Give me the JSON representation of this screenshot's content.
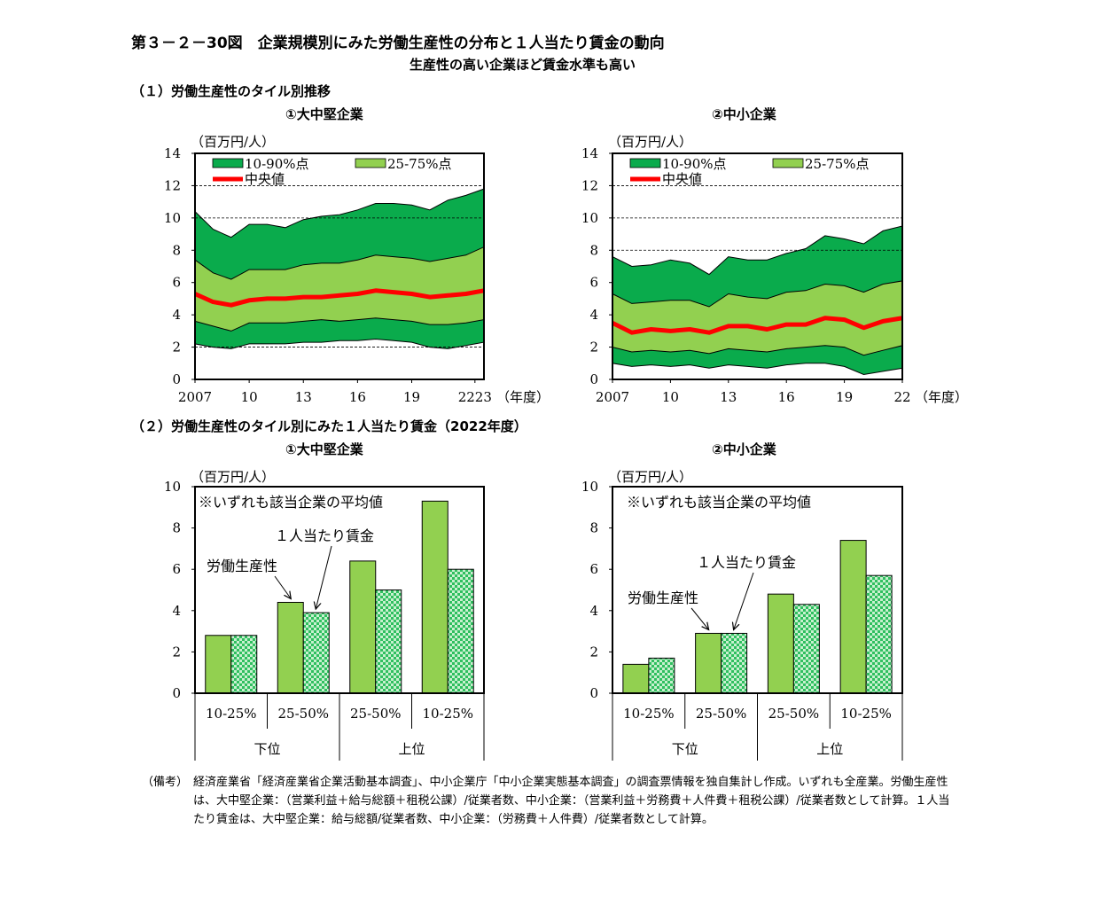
{
  "header": {
    "title": "第３－２－30図　企業規模別にみた労働生産性の分布と１人当たり賃金の動向",
    "subtitle": "生産性の高い企業ほど賃金水準も高い"
  },
  "sections": {
    "s1": "（１）労働生産性のタイル別推移",
    "s2": "（２）労働生産性のタイル別にみた１人当たり賃金（2022年度）"
  },
  "panel_titles": {
    "large": "①大中堅企業",
    "small": "②中小企業"
  },
  "notes": {
    "label": "（備考）",
    "lines": [
      "経済産業省「経済産業省企業活動基本調査」、中小企業庁「中小企業実態基本調査」の調査票情報を独自集計し作成。いずれも全産業。労働生産性は、大中堅企業：（営業利益＋給与総額＋租税公課）/従業者数、中小企業：（営業利益＋労務費＋人件費＋租税公課）/従業者数として計算。１人当たり賃金は、大中堅企業：給与総額/従業者数、中小企業：（労務費＋人件費）/従業者数として計算。"
    ]
  },
  "colors": {
    "band_10_90": "#0aab4c",
    "band_25_75": "#92d050",
    "median": "#ff0000",
    "bar_productivity": "#92d050",
    "bar_wage": "#2fbf5f"
  },
  "chart_data": [
    {
      "id": "line_large",
      "type": "area",
      "title": "①大中堅企業",
      "ylabel": "（百万円/人）",
      "xlabel": "（年度）",
      "ylim": [
        0,
        14
      ],
      "yticks": [
        0,
        2,
        4,
        6,
        8,
        10,
        12,
        14
      ],
      "grid": [
        2,
        10,
        12
      ],
      "x": [
        2007,
        2008,
        2009,
        2010,
        2011,
        2012,
        2013,
        2014,
        2015,
        2016,
        2017,
        2018,
        2019,
        2020,
        2021,
        2022,
        2023
      ],
      "xtick_labels": [
        {
          "x": 2007,
          "label": "2007"
        },
        {
          "x": 2010,
          "label": "10"
        },
        {
          "x": 2013,
          "label": "13"
        },
        {
          "x": 2016,
          "label": "16"
        },
        {
          "x": 2019,
          "label": "19"
        },
        {
          "x": 2022.5,
          "label": "2223"
        }
      ],
      "legend": [
        "10-90%点",
        "25-75%点",
        "中央値"
      ],
      "legend_position": "top-left",
      "series": {
        "p10": [
          2.2,
          2.0,
          1.9,
          2.2,
          2.2,
          2.2,
          2.3,
          2.3,
          2.4,
          2.4,
          2.5,
          2.4,
          2.3,
          2.0,
          1.9,
          2.1,
          2.3
        ],
        "p25": [
          3.6,
          3.3,
          3.0,
          3.5,
          3.5,
          3.5,
          3.6,
          3.7,
          3.6,
          3.7,
          3.8,
          3.7,
          3.6,
          3.4,
          3.4,
          3.5,
          3.7
        ],
        "median": [
          5.3,
          4.8,
          4.6,
          4.9,
          5.0,
          5.0,
          5.1,
          5.1,
          5.2,
          5.3,
          5.5,
          5.4,
          5.3,
          5.1,
          5.2,
          5.3,
          5.5
        ],
        "p75": [
          7.4,
          6.6,
          6.2,
          6.8,
          6.8,
          6.8,
          7.1,
          7.2,
          7.2,
          7.4,
          7.7,
          7.6,
          7.5,
          7.3,
          7.5,
          7.7,
          8.2
        ],
        "p90": [
          10.4,
          9.3,
          8.8,
          9.6,
          9.6,
          9.4,
          9.9,
          10.1,
          10.2,
          10.5,
          10.9,
          10.9,
          10.8,
          10.5,
          11.1,
          11.4,
          11.8
        ]
      }
    },
    {
      "id": "line_small",
      "type": "area",
      "title": "②中小企業",
      "ylabel": "（百万円/人）",
      "xlabel": "（年度）",
      "ylim": [
        0,
        14
      ],
      "yticks": [
        0,
        2,
        4,
        6,
        8,
        10,
        12,
        14
      ],
      "grid": [
        8,
        10,
        12
      ],
      "x": [
        2007,
        2008,
        2009,
        2010,
        2011,
        2012,
        2013,
        2014,
        2015,
        2016,
        2017,
        2018,
        2019,
        2020,
        2021,
        2022
      ],
      "xtick_labels": [
        {
          "x": 2007,
          "label": "2007"
        },
        {
          "x": 2010,
          "label": "10"
        },
        {
          "x": 2013,
          "label": "13"
        },
        {
          "x": 2016,
          "label": "16"
        },
        {
          "x": 2019,
          "label": "19"
        },
        {
          "x": 2022,
          "label": "22"
        }
      ],
      "legend": [
        "10-90%点",
        "25-75%点",
        "中央値"
      ],
      "legend_position": "top-left",
      "series": {
        "p10": [
          1.0,
          0.8,
          0.9,
          0.8,
          0.9,
          0.7,
          0.9,
          0.8,
          0.7,
          0.9,
          1.0,
          1.0,
          0.8,
          0.3,
          0.5,
          0.7
        ],
        "p25": [
          2.0,
          1.7,
          1.8,
          1.7,
          1.8,
          1.6,
          1.9,
          1.8,
          1.7,
          1.9,
          2.0,
          2.1,
          2.0,
          1.5,
          1.8,
          2.1
        ],
        "median": [
          3.5,
          2.9,
          3.1,
          3.0,
          3.1,
          2.9,
          3.3,
          3.3,
          3.1,
          3.4,
          3.4,
          3.8,
          3.7,
          3.2,
          3.6,
          3.8
        ],
        "p75": [
          5.3,
          4.7,
          4.8,
          4.9,
          4.9,
          4.5,
          5.3,
          5.1,
          5.0,
          5.4,
          5.5,
          5.9,
          5.8,
          5.4,
          5.9,
          6.1
        ],
        "p90": [
          7.6,
          7.0,
          7.1,
          7.4,
          7.2,
          6.5,
          7.6,
          7.4,
          7.4,
          7.8,
          8.1,
          8.9,
          8.7,
          8.4,
          9.2,
          9.5
        ]
      }
    },
    {
      "id": "bar_large",
      "type": "bar",
      "title": "①大中堅企業",
      "ylabel": "（百万円/人）",
      "ylim": [
        0,
        10
      ],
      "yticks": [
        0,
        2,
        4,
        6,
        8,
        10
      ],
      "note": "※いずれも該当企業の平均値",
      "annotations": {
        "productivity": "労働生産性",
        "wage": "１人当たり賃金"
      },
      "categories": [
        "10-25%",
        "25-50%",
        "25-50%",
        "10-25%"
      ],
      "groups": [
        "下位",
        "上位"
      ],
      "series": [
        {
          "name": "労働生産性",
          "values": [
            2.8,
            4.4,
            6.4,
            9.3
          ]
        },
        {
          "name": "１人当たり賃金",
          "values": [
            2.8,
            3.9,
            5.0,
            6.0
          ]
        }
      ]
    },
    {
      "id": "bar_small",
      "type": "bar",
      "title": "②中小企業",
      "ylabel": "（百万円/人）",
      "ylim": [
        0,
        10
      ],
      "yticks": [
        0,
        2,
        4,
        6,
        8,
        10
      ],
      "note": "※いずれも該当企業の平均値",
      "annotations": {
        "productivity": "労働生産性",
        "wage": "１人当たり賃金"
      },
      "categories": [
        "10-25%",
        "25-50%",
        "25-50%",
        "10-25%"
      ],
      "groups": [
        "下位",
        "上位"
      ],
      "series": [
        {
          "name": "労働生産性",
          "values": [
            1.4,
            2.9,
            4.8,
            7.4
          ]
        },
        {
          "name": "１人当たり賃金",
          "values": [
            1.7,
            2.9,
            4.3,
            5.7
          ]
        }
      ]
    }
  ]
}
